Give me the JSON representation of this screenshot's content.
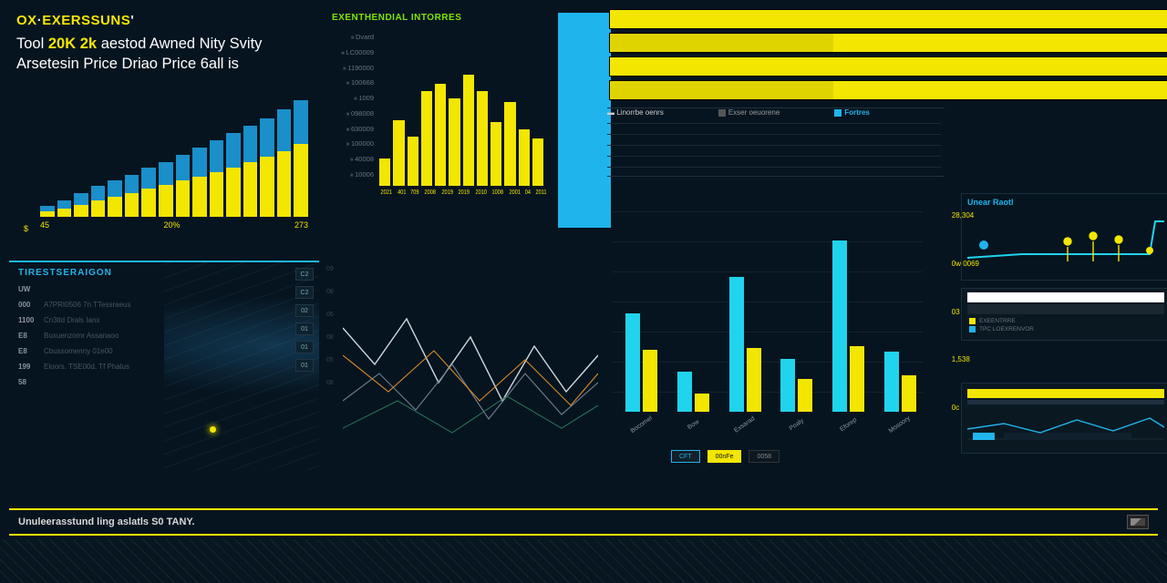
{
  "brand": {
    "a": "OX",
    "b": "EXERSSUNS"
  },
  "headline": {
    "p1": "Tool",
    "h1": "20K",
    "p2": "2k",
    "p3": "aestod Awned Nity Svity",
    "p4": "Arsetesin Price Driao Price 6all is"
  },
  "climb_chart": {
    "type": "bar-stacked",
    "colors": {
      "back": "#1a8fc9",
      "front": "#f3e600"
    },
    "back": [
      12,
      18,
      26,
      34,
      40,
      46,
      54,
      60,
      68,
      76,
      84,
      92,
      100,
      108,
      118,
      128
    ],
    "front": [
      6,
      9,
      13,
      18,
      22,
      26,
      31,
      35,
      40,
      44,
      49,
      54,
      60,
      66,
      72,
      80
    ],
    "y_label": "$",
    "x_labels": [
      "45",
      "20%",
      "273"
    ]
  },
  "tm_chart": {
    "type": "bar",
    "title": "EXENTHENDIAL INTORRES",
    "y_labels": [
      "Dvard",
      "LC00009",
      "1190000",
      "100668",
      "1009",
      "098008",
      "630009",
      "100000",
      "40008",
      "10006"
    ],
    "bars": [
      30,
      72,
      54,
      104,
      112,
      96,
      122,
      104,
      70,
      92,
      62,
      52
    ],
    "bar_color": "#f3e600",
    "x_labels": [
      "2021",
      "401",
      "709",
      "2008",
      "2019",
      "2019",
      "2010",
      "1008",
      "2001",
      "04",
      "2011"
    ],
    "bigbar_color": "#1fb4ec"
  },
  "stripes": {
    "count": 4,
    "color": "#f3e600"
  },
  "tr_legend": {
    "a": "Linorrbe oenrs",
    "b": "Exser oeuorene",
    "c": "Fortres"
  },
  "ml": {
    "title": "TIRESTSERAIGON",
    "rows": [
      {
        "l": "UW",
        "t": ""
      },
      {
        "l": "000",
        "t": "A7PRI0506 7n TTessraeus"
      },
      {
        "l": "1100",
        "t": "Cn3tld Drals Ianx"
      },
      {
        "l": "E8",
        "t": "Buxuenzomr Assanaoo"
      },
      {
        "l": "E8",
        "t": "Cbussomenny 01e00"
      },
      {
        "l": "199",
        "t": "Eloors. TSE00d. Tf Phalus"
      },
      {
        "l": "58",
        "t": ""
      }
    ],
    "badges": [
      "C2",
      "C2",
      "02",
      "01",
      "01",
      "01"
    ]
  },
  "mc": {
    "y_labels": [
      "09",
      "08",
      "06",
      "08",
      "05",
      "08"
    ]
  },
  "mr": {
    "type": "grouped-bar",
    "colors": {
      "c": "#1fd4ec",
      "y": "#f3e600"
    },
    "groups": [
      {
        "c": 108,
        "y": 68
      },
      {
        "c": 44,
        "y": 20
      },
      {
        "c": 148,
        "y": 70
      },
      {
        "c": 58,
        "y": 36
      },
      {
        "c": 188,
        "y": 72
      },
      {
        "c": 66,
        "y": 40
      }
    ],
    "x_labels": [
      "Bocomel",
      "Bow",
      "Exsarad",
      "Poaly",
      "Eforep",
      "Mosoory"
    ],
    "ry_labels": [
      "28,304",
      "0w 0069",
      "03",
      "1,538",
      "0c"
    ],
    "tags": [
      {
        "t": "CFT",
        "bg": "#13202a",
        "bd": "#1fb4ec",
        "fg": "#1fb4ec"
      },
      {
        "t": "00nFe",
        "bg": "#f3e600",
        "bd": "#f3e600",
        "fg": "#111"
      },
      {
        "t": "0058",
        "bg": "#0d1820",
        "bd": "#333",
        "fg": "#888"
      }
    ]
  },
  "fr": {
    "top_title": "Unear Raotl",
    "mid_rows": [
      {
        "c": "#f3e600",
        "t": "EXEENTRRE"
      },
      {
        "c": "#1fb4ec",
        "t": "TPC LOEXRENVOR"
      }
    ]
  },
  "footer": {
    "text": "Unuleerasstund ling aslatls S0 TANY."
  }
}
